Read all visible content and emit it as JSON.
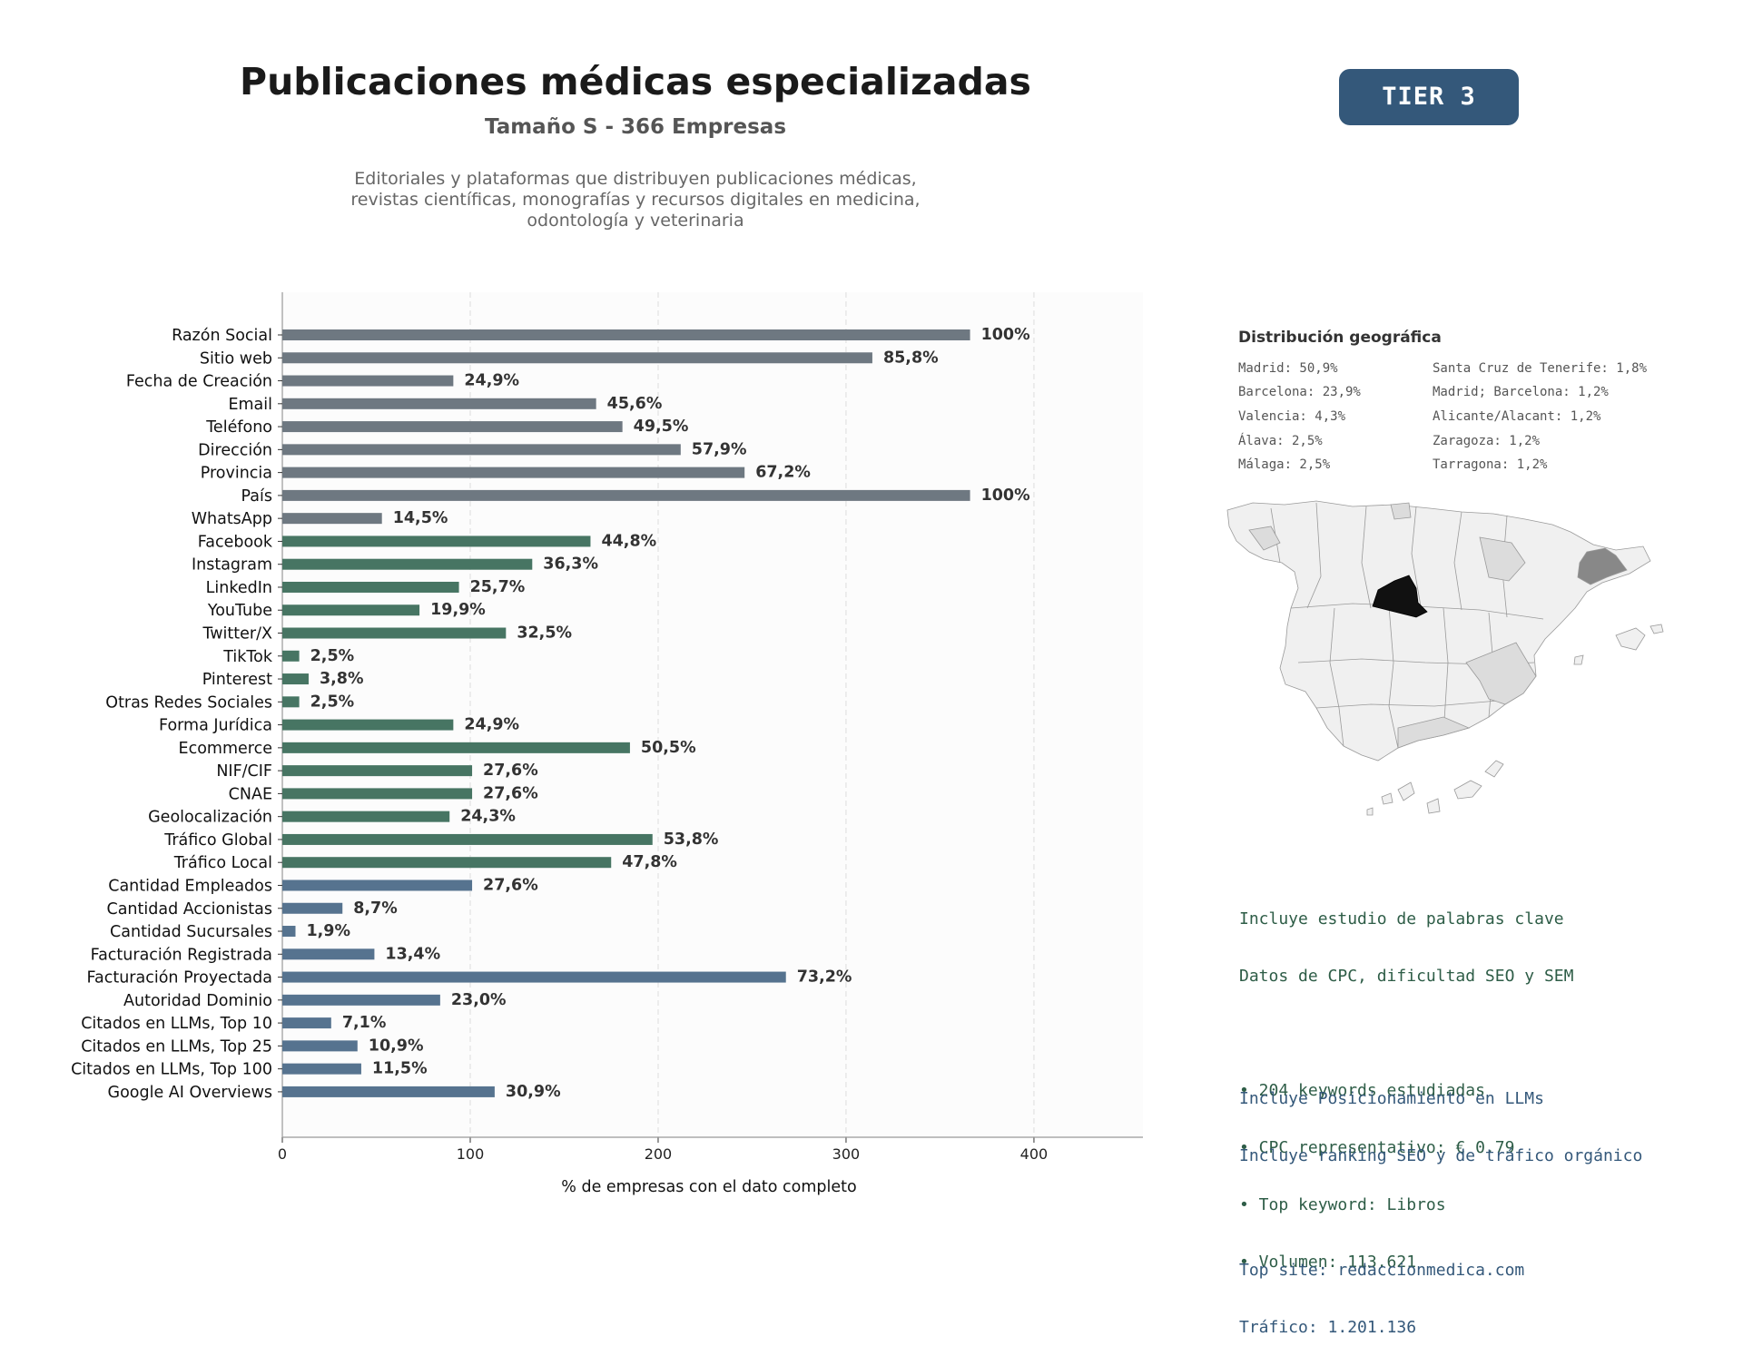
{
  "header": {
    "title": "Publicaciones médicas especializadas",
    "subtitle": "Tamaño S - 366 Empresas",
    "description": [
      "Editoriales y plataformas que distribuyen publicaciones médicas,",
      "revistas científicas, monografías y recursos digitales en medicina,",
      "odontología y veterinaria"
    ],
    "tier": "TIER 3"
  },
  "colors": {
    "gray": "#6e7881",
    "green": "#477563",
    "blue": "#56738f",
    "tier_bg": "#34587a"
  },
  "chart_data": {
    "type": "bar",
    "orientation": "horizontal",
    "xlabel": "% de empresas con el dato completo",
    "xlim": [
      0,
      458
    ],
    "xticks": [
      0,
      100,
      200,
      300,
      400
    ],
    "grid": "vertical dashed",
    "categories": [
      "Razón Social",
      "Sitio web",
      "Fecha de Creación",
      "Email",
      "Teléfono",
      "Dirección",
      "Provincia",
      "País",
      "WhatsApp",
      "Facebook",
      "Instagram",
      "LinkedIn",
      "YouTube",
      "Twitter/X",
      "TikTok",
      "Pinterest",
      "Otras Redes Sociales",
      "Forma Jurídica",
      "Ecommerce",
      "NIF/CIF",
      "CNAE",
      "Geolocalización",
      "Tráfico Global",
      "Tráfico Local",
      "Cantidad Empleados",
      "Cantidad Accionistas",
      "Cantidad Sucursales",
      "Facturación Registrada",
      "Facturación Proyectada",
      "Autoridad Dominio",
      "Citados en LLMs, Top 10",
      "Citados en LLMs, Top 25",
      "Citados en LLMs, Top 100",
      "Google AI Overviews"
    ],
    "values": [
      366,
      314,
      91,
      167,
      181,
      212,
      246,
      366,
      53,
      164,
      133,
      94,
      73,
      119,
      9,
      14,
      9,
      91,
      185,
      101,
      101,
      89,
      197,
      175,
      101,
      32,
      7,
      49,
      268,
      84,
      26,
      40,
      42,
      113
    ],
    "labels": [
      "100%",
      "85,8%",
      "24,9%",
      "45,6%",
      "49,5%",
      "57,9%",
      "67,2%",
      "100%",
      "14,5%",
      "44,8%",
      "36,3%",
      "25,7%",
      "19,9%",
      "32,5%",
      "2,5%",
      "3,8%",
      "2,5%",
      "24,9%",
      "50,5%",
      "27,6%",
      "27,6%",
      "24,3%",
      "53,8%",
      "47,8%",
      "27,6%",
      "8,7%",
      "1,9%",
      "13,4%",
      "73,2%",
      "23,0%",
      "7,1%",
      "10,9%",
      "11,5%",
      "30,9%"
    ],
    "color_groups": [
      "gray",
      "gray",
      "gray",
      "gray",
      "gray",
      "gray",
      "gray",
      "gray",
      "gray",
      "green",
      "green",
      "green",
      "green",
      "green",
      "green",
      "green",
      "green",
      "green",
      "green",
      "green",
      "green",
      "green",
      "green",
      "green",
      "blue",
      "blue",
      "blue",
      "blue",
      "blue",
      "blue",
      "blue",
      "blue",
      "blue",
      "blue"
    ]
  },
  "geo": {
    "title": "Distribución geográfica",
    "items": [
      "Madrid: 50,9%",
      "Santa Cruz de Tenerife: 1,8%",
      "Barcelona: 23,9%",
      "Madrid; Barcelona: 1,2%",
      "Valencia: 4,3%",
      "Alicante/Alacant: 1,2%",
      "Álava: 2,5%",
      "Zaragoza: 1,2%",
      "Málaga: 2,5%",
      "Tarragona: 1,2%"
    ],
    "map_legend": {
      "madrid": "#111111",
      "barcelona": "#888888",
      "medium": "#dcdcdc",
      "low": "#f0f0f0"
    }
  },
  "info": {
    "keywords": {
      "line1": "Incluye estudio de palabras clave",
      "line2": "Datos de CPC, dificultad SEO y SEM",
      "bullet1": "• 204 keywords estudiadas",
      "bullet2": "• CPC representativo: € 0.79",
      "bullet3": "• Top keyword: Libros",
      "bullet4": "• Volumen: 113.621"
    },
    "llm": {
      "line1": "Incluye Posicionamiento en LLMs",
      "line2": "Incluye ranking SEO y de tráfico orgánico",
      "top_site": "Top site: redaccionmedica.com",
      "traffic": "Tráfico: 1.201.136"
    }
  }
}
